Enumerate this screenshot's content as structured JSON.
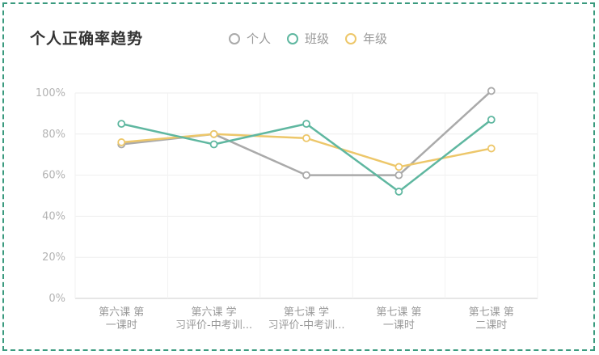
{
  "chart_data": {
    "type": "line",
    "title": "个人正确率趋势",
    "categories": [
      [
        "第六课 第",
        "一课时"
      ],
      [
        "第六课 学",
        "习评价-中考训..."
      ],
      [
        "第七课 学",
        "习评价-中考训..."
      ],
      [
        "第七课 第",
        "一课时"
      ],
      [
        "第七课 第",
        "二课时"
      ]
    ],
    "ylim": [
      0,
      100
    ],
    "yticks": [
      "0%",
      "20%",
      "40%",
      "60%",
      "80%",
      "100%"
    ],
    "grid": true,
    "legend_position": "top",
    "series": [
      {
        "name": "个人",
        "color": "#aaaaaa",
        "values": [
          75,
          80,
          60,
          60,
          101
        ]
      },
      {
        "name": "班级",
        "color": "#5fb7a0",
        "values": [
          85,
          75,
          85,
          52,
          87
        ]
      },
      {
        "name": "年级",
        "color": "#edc76a",
        "values": [
          76,
          80,
          78,
          64,
          73
        ]
      }
    ]
  }
}
